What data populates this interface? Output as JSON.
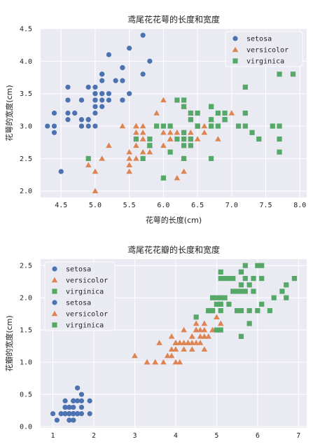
{
  "colors": {
    "background": "#eaeaf2",
    "grid": "#ffffff",
    "setosa": "#4c72b0",
    "versicolor": "#dd8452",
    "virginica": "#55a868"
  },
  "chart_data": [
    {
      "type": "scatter",
      "title": "鸢尾花花萼的长度和宽度",
      "xlabel": "花萼的长度(cm)",
      "ylabel": "花萼的宽度(cm)",
      "xlim": [
        4.2,
        8.1
      ],
      "ylim": [
        1.9,
        4.5
      ],
      "xticks": [
        "4.5",
        "5.0",
        "5.5",
        "6.0",
        "6.5",
        "7.0",
        "7.5",
        "8.0"
      ],
      "yticks": [
        "2.0",
        "2.5",
        "3.0",
        "3.5",
        "4.0",
        "4.5"
      ],
      "grid": true,
      "legend_position": "top-right",
      "series": [
        {
          "name": "setosa",
          "marker": "circle",
          "x": [
            5.1,
            4.9,
            4.7,
            4.6,
            5.0,
            5.4,
            4.6,
            5.0,
            4.4,
            4.9,
            5.4,
            4.8,
            4.8,
            4.3,
            5.8,
            5.7,
            5.4,
            5.1,
            5.7,
            5.1,
            5.4,
            5.1,
            4.6,
            5.1,
            4.8,
            5.0,
            5.0,
            5.2,
            5.2,
            4.7,
            4.8,
            5.4,
            5.2,
            5.5,
            4.9,
            5.0,
            5.5,
            4.9,
            4.4,
            5.1,
            5.0,
            4.5,
            4.4,
            5.0,
            5.1,
            4.8,
            5.1,
            4.6,
            5.3,
            5.0
          ],
          "y": [
            3.5,
            3.0,
            3.2,
            3.1,
            3.6,
            3.9,
            3.4,
            3.4,
            2.9,
            3.1,
            3.7,
            3.4,
            3.0,
            3.0,
            4.0,
            4.4,
            3.9,
            3.5,
            3.8,
            3.8,
            3.4,
            3.7,
            3.6,
            3.3,
            3.4,
            3.0,
            3.4,
            3.5,
            3.4,
            3.2,
            3.1,
            3.4,
            4.1,
            4.2,
            3.1,
            3.2,
            3.5,
            3.6,
            3.0,
            3.4,
            3.5,
            2.3,
            3.2,
            3.5,
            3.8,
            3.0,
            3.8,
            3.2,
            3.7,
            3.3
          ]
        },
        {
          "name": "versicolor",
          "marker": "triangle",
          "x": [
            7.0,
            6.4,
            6.9,
            5.5,
            6.5,
            5.7,
            6.3,
            4.9,
            6.6,
            5.2,
            5.0,
            5.9,
            6.0,
            6.1,
            5.6,
            6.7,
            5.6,
            5.8,
            6.2,
            5.6,
            5.9,
            6.1,
            6.3,
            6.1,
            6.4,
            6.6,
            6.8,
            6.7,
            6.0,
            5.7,
            5.5,
            5.5,
            5.8,
            6.0,
            5.4,
            6.0,
            6.7,
            6.3,
            5.6,
            5.5,
            5.5,
            6.1,
            5.8,
            5.0,
            5.6,
            5.7,
            5.7,
            6.2,
            5.1,
            5.7
          ],
          "y": [
            3.2,
            3.2,
            3.1,
            2.3,
            2.8,
            2.8,
            3.3,
            2.4,
            2.9,
            2.7,
            2.0,
            3.0,
            2.2,
            2.9,
            2.9,
            3.1,
            3.0,
            2.7,
            2.2,
            2.5,
            3.2,
            2.8,
            2.5,
            2.8,
            2.9,
            3.0,
            2.8,
            3.0,
            2.9,
            2.6,
            2.4,
            2.4,
            2.7,
            2.7,
            3.0,
            3.4,
            3.1,
            2.3,
            3.0,
            2.5,
            2.6,
            3.0,
            2.6,
            2.3,
            2.7,
            3.0,
            2.9,
            2.9,
            2.5,
            2.8
          ]
        },
        {
          "name": "virginica",
          "marker": "square",
          "x": [
            6.3,
            5.8,
            7.1,
            6.3,
            6.5,
            7.6,
            4.9,
            7.3,
            6.7,
            7.2,
            6.5,
            6.4,
            6.8,
            5.7,
            5.8,
            6.4,
            6.5,
            7.7,
            7.7,
            6.0,
            6.9,
            5.6,
            7.7,
            6.3,
            6.7,
            7.2,
            6.2,
            6.1,
            6.4,
            7.2,
            7.4,
            7.9,
            6.4,
            6.3,
            6.1,
            7.7,
            6.3,
            6.4,
            6.0,
            6.9,
            6.7,
            6.9,
            5.8,
            6.8,
            6.7,
            6.7,
            6.3,
            6.5,
            6.2,
            5.9
          ],
          "y": [
            3.3,
            2.7,
            3.0,
            2.9,
            3.0,
            3.0,
            2.5,
            2.9,
            2.5,
            3.6,
            3.2,
            2.7,
            3.0,
            2.5,
            2.8,
            3.2,
            3.0,
            3.8,
            2.6,
            2.2,
            3.2,
            2.8,
            2.8,
            2.7,
            3.3,
            3.2,
            2.8,
            3.0,
            2.8,
            3.0,
            2.8,
            3.8,
            2.8,
            2.8,
            2.6,
            3.0,
            3.4,
            3.1,
            3.0,
            3.1,
            3.1,
            3.1,
            2.7,
            3.2,
            3.3,
            3.0,
            2.5,
            3.0,
            3.4,
            3.0
          ]
        }
      ]
    },
    {
      "type": "scatter",
      "title": "鸢尾花花瓣的长度和宽度",
      "xlabel": "",
      "ylabel": "花瓣的宽度(cm)",
      "xlim": [
        0.7,
        7.2
      ],
      "ylim": [
        -0.02,
        2.6
      ],
      "xticks": [
        "1",
        "2",
        "3",
        "4",
        "5",
        "6",
        "7"
      ],
      "yticks": [
        "0.0",
        "0.5",
        "1.0",
        "1.5",
        "2.0",
        "2.5"
      ],
      "grid": true,
      "legend_position": "top-left",
      "legend_entries": [
        "setosa",
        "versicolor",
        "virginica",
        "setosa",
        "versicolor",
        "virginica"
      ],
      "series": [
        {
          "name": "setosa",
          "marker": "circle",
          "x": [
            1.4,
            1.4,
            1.3,
            1.5,
            1.4,
            1.7,
            1.4,
            1.5,
            1.4,
            1.5,
            1.5,
            1.6,
            1.4,
            1.1,
            1.2,
            1.5,
            1.3,
            1.4,
            1.7,
            1.5,
            1.7,
            1.5,
            1.0,
            1.7,
            1.9,
            1.6,
            1.6,
            1.5,
            1.4,
            1.6,
            1.6,
            1.5,
            1.5,
            1.4,
            1.5,
            1.2,
            1.3,
            1.4,
            1.3,
            1.5,
            1.3,
            1.3,
            1.3,
            1.6,
            1.9,
            1.4,
            1.6,
            1.4,
            1.5,
            1.4
          ],
          "y": [
            0.2,
            0.2,
            0.2,
            0.2,
            0.2,
            0.4,
            0.3,
            0.2,
            0.2,
            0.1,
            0.2,
            0.2,
            0.1,
            0.1,
            0.2,
            0.4,
            0.4,
            0.3,
            0.3,
            0.3,
            0.2,
            0.4,
            0.2,
            0.5,
            0.2,
            0.2,
            0.4,
            0.2,
            0.2,
            0.2,
            0.2,
            0.4,
            0.1,
            0.2,
            0.2,
            0.2,
            0.2,
            0.1,
            0.2,
            0.2,
            0.3,
            0.3,
            0.2,
            0.6,
            0.4,
            0.3,
            0.2,
            0.2,
            0.2,
            0.2
          ]
        },
        {
          "name": "versicolor",
          "marker": "triangle",
          "x": [
            4.7,
            4.5,
            4.9,
            4.0,
            4.6,
            4.5,
            4.7,
            3.3,
            4.6,
            3.9,
            3.5,
            4.2,
            4.0,
            4.7,
            3.6,
            4.4,
            4.5,
            4.1,
            4.5,
            3.9,
            4.8,
            4.0,
            4.9,
            4.7,
            4.3,
            4.4,
            4.8,
            5.0,
            4.5,
            3.5,
            3.8,
            3.7,
            3.9,
            5.1,
            4.5,
            4.5,
            4.7,
            4.4,
            4.1,
            4.0,
            4.4,
            4.6,
            4.0,
            3.3,
            4.2,
            4.2,
            4.2,
            4.3,
            3.0,
            4.1
          ],
          "y": [
            1.4,
            1.5,
            1.5,
            1.3,
            1.5,
            1.3,
            1.6,
            1.0,
            1.3,
            1.4,
            1.0,
            1.5,
            1.0,
            1.4,
            1.3,
            1.4,
            1.5,
            1.0,
            1.5,
            1.1,
            1.8,
            1.3,
            1.5,
            1.2,
            1.3,
            1.4,
            1.4,
            1.7,
            1.5,
            1.0,
            1.1,
            1.0,
            1.2,
            1.6,
            1.5,
            1.6,
            1.5,
            1.3,
            1.3,
            1.3,
            1.2,
            1.4,
            1.2,
            1.0,
            1.3,
            1.2,
            1.3,
            1.3,
            1.1,
            1.3
          ]
        },
        {
          "name": "virginica",
          "marker": "square",
          "x": [
            6.0,
            5.1,
            5.9,
            5.6,
            5.8,
            6.6,
            4.5,
            6.3,
            5.8,
            6.1,
            5.1,
            5.3,
            5.5,
            5.0,
            5.1,
            5.3,
            5.5,
            6.7,
            6.9,
            5.0,
            5.7,
            4.9,
            6.7,
            4.9,
            5.7,
            6.0,
            4.8,
            4.9,
            5.6,
            5.8,
            6.1,
            6.4,
            5.6,
            5.1,
            5.6,
            6.1,
            5.6,
            5.5,
            4.8,
            5.4,
            5.6,
            5.1,
            5.1,
            5.9,
            5.7,
            5.2,
            5.0,
            5.2,
            5.4,
            5.1
          ],
          "y": [
            2.5,
            1.9,
            2.1,
            1.8,
            2.2,
            2.1,
            1.7,
            1.8,
            1.8,
            2.5,
            2.0,
            1.9,
            2.1,
            2.0,
            2.4,
            2.3,
            1.8,
            2.2,
            2.3,
            1.5,
            2.3,
            2.0,
            2.0,
            1.8,
            2.1,
            1.8,
            1.8,
            1.8,
            2.1,
            1.6,
            1.9,
            2.0,
            2.2,
            1.5,
            1.4,
            2.3,
            2.4,
            1.8,
            1.8,
            2.1,
            2.4,
            2.3,
            1.9,
            2.3,
            2.5,
            2.3,
            1.9,
            2.0,
            2.3,
            1.8
          ]
        }
      ]
    }
  ]
}
